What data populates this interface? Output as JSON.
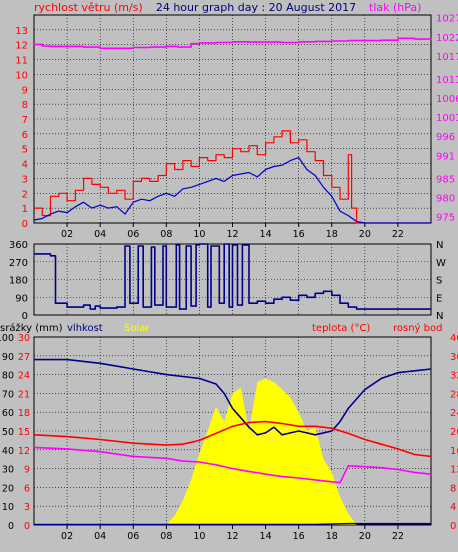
{
  "chart_data": [
    {
      "type": "line",
      "title": "24 hour graph day : 20 August 2017",
      "ylabel": "rychlost větru (m/s)",
      "y2label": "tlak (hPa)",
      "xlim": [
        0,
        24
      ],
      "ylim": [
        0,
        14
      ],
      "y2lim": [
        973.3,
        1027.7
      ],
      "x_ticks": [
        "02",
        "04",
        "06",
        "08",
        "10",
        "12",
        "14",
        "16",
        "18",
        "20",
        "22"
      ],
      "y_ticks": [
        "0",
        "1",
        "2",
        "3",
        "4",
        "5",
        "6",
        "7",
        "8",
        "9",
        "10",
        "11",
        "12",
        "13"
      ],
      "y2_ticks": [
        "975",
        "980",
        "985",
        "991",
        "996",
        "1001",
        "1006",
        "1011",
        "1017",
        "1022",
        "1027"
      ],
      "grid": true,
      "series": [
        {
          "name": "rychlost větru (m/s)",
          "color": "#ff0000",
          "axis": "left",
          "step": true,
          "x": [
            0.0,
            0.5,
            1.0,
            1.5,
            2.0,
            2.5,
            3.0,
            3.5,
            4.0,
            4.5,
            5.0,
            5.5,
            6.0,
            6.5,
            7.0,
            7.5,
            8.0,
            8.5,
            9.0,
            9.5,
            10.0,
            10.5,
            11.0,
            11.5,
            12.0,
            12.5,
            13.0,
            13.5,
            14.0,
            14.5,
            15.0,
            15.5,
            16.0,
            16.5,
            17.0,
            17.5,
            18.0,
            18.5,
            19.0,
            19.2,
            19.5,
            24.0
          ],
          "y": [
            1.0,
            0.5,
            1.8,
            2.0,
            1.5,
            2.2,
            3.0,
            2.6,
            2.4,
            2.0,
            2.2,
            1.6,
            2.8,
            3.0,
            2.8,
            3.2,
            4.0,
            3.6,
            4.2,
            3.8,
            4.4,
            4.2,
            4.6,
            4.4,
            5.0,
            4.8,
            5.2,
            4.6,
            5.4,
            5.8,
            6.2,
            5.4,
            5.6,
            4.8,
            4.2,
            3.2,
            2.4,
            1.6,
            4.6,
            1.0,
            0.0,
            0.0
          ]
        },
        {
          "name": "wind speed average",
          "color": "#0000cc",
          "axis": "left",
          "x": [
            0.0,
            0.5,
            1.0,
            1.5,
            2.0,
            2.5,
            3.0,
            3.5,
            4.0,
            4.5,
            5.0,
            5.5,
            6.0,
            6.5,
            7.0,
            7.5,
            8.0,
            8.5,
            9.0,
            9.5,
            10.0,
            10.5,
            11.0,
            11.5,
            12.0,
            12.5,
            13.0,
            13.5,
            14.0,
            14.5,
            15.0,
            15.5,
            16.0,
            16.5,
            17.0,
            17.5,
            18.0,
            18.5,
            19.0,
            19.5,
            20.0,
            24.0
          ],
          "y": [
            0.2,
            0.3,
            0.6,
            0.8,
            0.7,
            1.1,
            1.4,
            1.0,
            1.2,
            1.0,
            1.1,
            0.6,
            1.4,
            1.6,
            1.5,
            1.8,
            2.0,
            1.8,
            2.3,
            2.4,
            2.6,
            2.8,
            3.0,
            2.8,
            3.2,
            3.3,
            3.4,
            3.1,
            3.6,
            3.8,
            3.9,
            4.2,
            4.4,
            3.6,
            3.2,
            2.4,
            1.8,
            0.8,
            0.5,
            0.1,
            0.0,
            0.0
          ]
        },
        {
          "name": "tlak (hPa)",
          "color": "#ff00ff",
          "axis": "right",
          "step": true,
          "x": [
            0.0,
            0.5,
            1.0,
            2.0,
            3.0,
            4.0,
            5.0,
            6.0,
            7.0,
            8.0,
            8.7,
            9.5,
            10.0,
            11.0,
            12.0,
            13.0,
            14.0,
            15.0,
            16.0,
            17.0,
            18.0,
            19.0,
            20.0,
            21.0,
            22.0,
            23.0,
            24.0
          ],
          "y": [
            1020.0,
            1019.6,
            1019.5,
            1019.5,
            1019.3,
            1019.0,
            1019.0,
            1019.2,
            1019.3,
            1019.5,
            1019.3,
            1020.2,
            1020.4,
            1020.5,
            1020.7,
            1020.6,
            1020.6,
            1020.5,
            1020.7,
            1020.8,
            1020.9,
            1021.0,
            1021.0,
            1021.1,
            1021.6,
            1021.4,
            1021.6
          ]
        }
      ]
    },
    {
      "type": "line",
      "xlim": [
        0,
        24
      ],
      "ylim": [
        0,
        360
      ],
      "x_ticks": [
        "02",
        "04",
        "06",
        "08",
        "10",
        "12",
        "14",
        "16",
        "18",
        "20",
        "22"
      ],
      "y_ticks": [
        "0",
        "90",
        "180",
        "270",
        "360"
      ],
      "y2_ticks": [
        "N",
        "E",
        "S",
        "W",
        "N"
      ],
      "grid": true,
      "series": [
        {
          "name": "wind direction",
          "color": "#00008b",
          "axis": "left",
          "step": true,
          "x": [
            0.0,
            1.0,
            1.3,
            2.0,
            3.0,
            3.4,
            3.7,
            4.0,
            5.0,
            5.5,
            5.8,
            6.3,
            6.6,
            7.1,
            7.3,
            7.8,
            8.0,
            8.6,
            8.8,
            9.2,
            9.5,
            9.8,
            10.0,
            10.5,
            10.7,
            11.2,
            11.5,
            11.8,
            12.0,
            12.3,
            12.6,
            13.0,
            13.5,
            14.0,
            14.5,
            15.0,
            15.5,
            16.0,
            16.5,
            17.0,
            17.5,
            18.0,
            18.5,
            19.0,
            19.5,
            20.0,
            22.0,
            24.0
          ],
          "y": [
            310,
            300,
            60,
            40,
            50,
            30,
            45,
            35,
            40,
            350,
            60,
            350,
            40,
            345,
            50,
            350,
            40,
            355,
            30,
            350,
            45,
            355,
            360,
            40,
            350,
            60,
            360,
            40,
            355,
            50,
            355,
            60,
            70,
            60,
            80,
            90,
            75,
            100,
            90,
            110,
            120,
            100,
            60,
            40,
            30,
            30,
            30,
            30
          ]
        }
      ]
    },
    {
      "type": "line",
      "xlim": [
        0,
        24
      ],
      "ylim": [
        0,
        10
      ],
      "x_ticks": [
        "02",
        "04",
        "06",
        "08",
        "10",
        "12",
        "14",
        "16",
        "18",
        "20",
        "22"
      ],
      "y_ticks_left_red": [
        "0",
        "3",
        "6",
        "9",
        "12",
        "15",
        "18",
        "21",
        "24",
        "27",
        "30"
      ],
      "y_ticks_left_black": [
        "0",
        "10",
        "20",
        "30",
        "40",
        "50",
        "60",
        "70",
        "80",
        "90",
        "100"
      ],
      "y_ticks_right": [
        "0",
        "4",
        "8",
        "12",
        "16",
        "20",
        "24",
        "28",
        "32",
        "36",
        "40"
      ],
      "legend": [
        "srážky (mm)",
        "vlhkost",
        "Solar",
        "teplota (°C)",
        "rosný bod"
      ],
      "grid": true,
      "series": [
        {
          "name": "Solar",
          "color": "#ffff00",
          "fill": true,
          "x": [
            0.0,
            8.0,
            8.5,
            9.0,
            9.5,
            10.0,
            10.5,
            11.0,
            11.5,
            12.0,
            12.5,
            13.0,
            13.5,
            14.0,
            14.5,
            15.0,
            15.5,
            16.0,
            16.5,
            17.0,
            17.5,
            18.0,
            18.5,
            19.0,
            19.5,
            24.0
          ],
          "y": [
            0.0,
            0.0,
            0.5,
            1.3,
            2.4,
            3.8,
            5.0,
            6.3,
            5.5,
            7.0,
            7.3,
            5.0,
            7.6,
            7.8,
            7.6,
            7.2,
            6.8,
            6.0,
            5.0,
            5.2,
            3.5,
            2.8,
            1.5,
            0.6,
            0.0,
            0.0
          ]
        },
        {
          "name": "vlhkost",
          "color": "#00008b",
          "axis": "black",
          "x": [
            0.0,
            2.0,
            4.0,
            6.0,
            8.0,
            9.0,
            10.0,
            11.0,
            11.5,
            12.0,
            12.5,
            13.0,
            13.5,
            14.0,
            14.5,
            15.0,
            15.5,
            16.0,
            17.0,
            18.0,
            18.5,
            19.0,
            20.0,
            21.0,
            22.0,
            23.0,
            24.0
          ],
          "y": [
            88,
            88,
            86,
            83,
            80,
            79,
            78,
            75,
            70,
            62,
            57,
            52,
            48,
            49,
            52,
            48,
            49,
            50,
            48,
            50,
            55,
            62,
            72,
            78,
            81,
            82,
            83
          ]
        },
        {
          "name": "teplota (°C)",
          "color": "#ff0000",
          "axis": "right",
          "x": [
            0.0,
            2.0,
            4.0,
            6.0,
            8.0,
            9.0,
            10.0,
            11.0,
            12.0,
            13.0,
            14.0,
            15.0,
            16.0,
            17.0,
            18.0,
            19.0,
            20.0,
            21.0,
            22.0,
            23.0,
            24.0
          ],
          "y": [
            19.2,
            18.8,
            18.2,
            17.4,
            17.0,
            17.2,
            18.0,
            19.5,
            21.0,
            21.8,
            22.0,
            21.6,
            21.0,
            21.0,
            20.6,
            19.5,
            18.2,
            17.2,
            16.2,
            15.0,
            14.6
          ]
        },
        {
          "name": "rosný bod",
          "color": "#ff00ff",
          "axis": "right",
          "x": [
            0.0,
            2.0,
            4.0,
            6.0,
            8.0,
            9.0,
            10.0,
            11.0,
            12.0,
            13.0,
            14.0,
            15.0,
            16.0,
            17.0,
            18.0,
            18.5,
            19.0,
            20.0,
            21.0,
            22.0,
            23.0,
            24.0
          ],
          "y": [
            16.5,
            16.2,
            15.6,
            14.6,
            14.2,
            13.6,
            13.4,
            12.8,
            12.0,
            11.4,
            10.8,
            10.3,
            10.0,
            9.6,
            9.2,
            9.0,
            12.6,
            12.4,
            12.2,
            11.8,
            11.2,
            10.8
          ]
        },
        {
          "name": "srážky (mm)",
          "color": "#00008b",
          "axis": "left_red",
          "x": [
            0.0,
            17.0,
            19.0,
            24.0
          ],
          "y": [
            0.08,
            0.08,
            0.2,
            0.2
          ]
        }
      ]
    }
  ]
}
